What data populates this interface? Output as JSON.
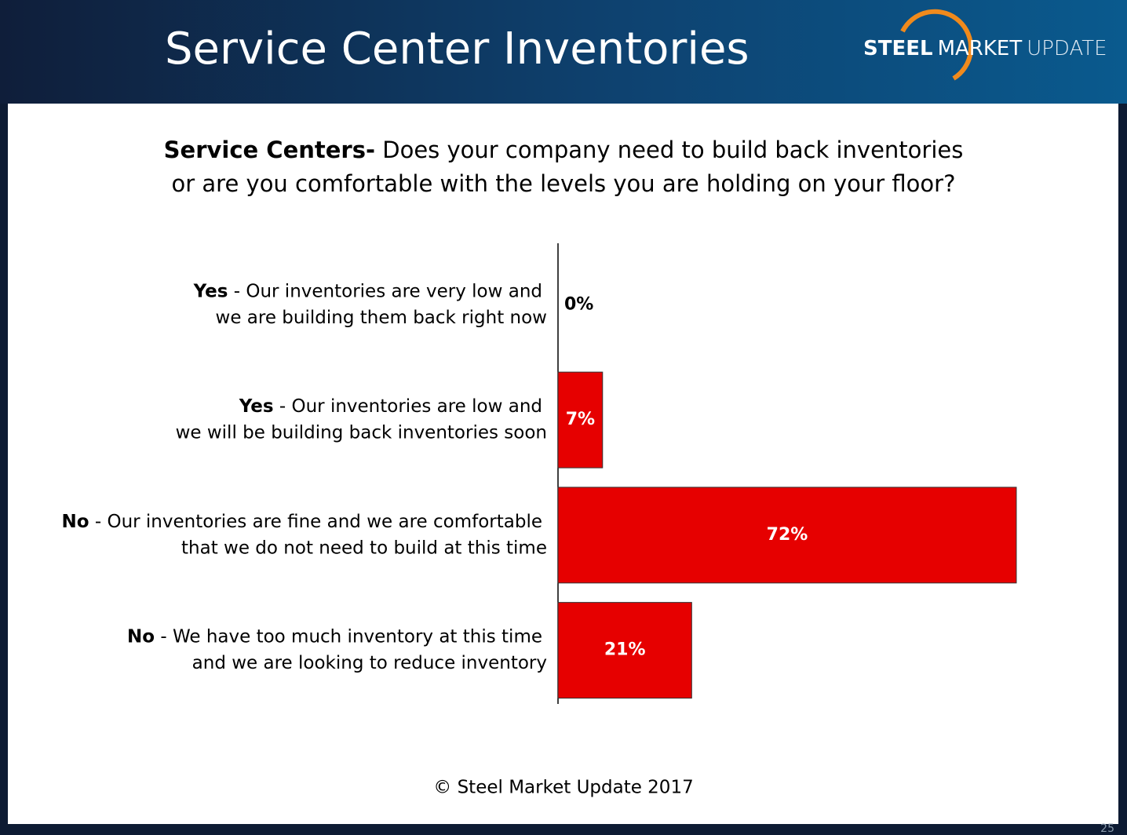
{
  "header": {
    "title": "Service Center Inventories",
    "logo": {
      "bold": "STEEL",
      "middle": "MARKET",
      "light": "UPDATE"
    }
  },
  "chart_data": {
    "type": "bar",
    "orientation": "horizontal",
    "title": {
      "bold": "Service Centers-",
      "line1": " Does your company need to build back inventories",
      "line2": "or are you comfortable with the levels you are holding on your floor?"
    },
    "categories": [
      {
        "bold": "Yes",
        "line1": " - Our inventories are very low and",
        "line2": "we are building them back right now"
      },
      {
        "bold": "Yes",
        "line1": " - Our inventories are low and",
        "line2": "we will be building back inventories soon"
      },
      {
        "bold": "No",
        "line1": " - Our inventories are fine and we are comfortable",
        "line2": "that we do not need to build at this time"
      },
      {
        "bold": "No",
        "line1": " - We have too much inventory at this time",
        "line2": "and we are looking to reduce inventory"
      }
    ],
    "values": [
      0,
      7,
      72,
      21
    ],
    "value_labels": [
      "0%",
      "7%",
      "72%",
      "21%"
    ],
    "color": "#e60000"
  },
  "footer": {
    "copyright": "© Steel Market Update 2017",
    "page_number": "25"
  }
}
